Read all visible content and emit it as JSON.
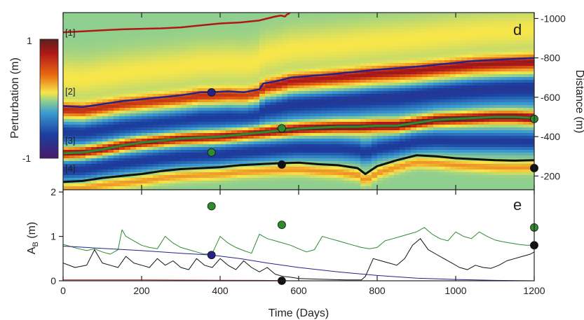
{
  "chart_data": [
    {
      "panel": "d",
      "type": "heatmap",
      "xlabel": "",
      "ylabel": "Distance (m)",
      "xlim": [
        0,
        1200
      ],
      "ylim": [
        -130,
        -1030
      ],
      "yticks": [
        -200,
        -400,
        -600,
        -800,
        -1000
      ],
      "colorbar": {
        "label": "Perturbation (m)",
        "max_label": "1",
        "min_label": "-1"
      },
      "band_labels": [
        "[1]",
        "[2]",
        "[3]",
        "[4]"
      ],
      "series": [
        {
          "color": "#b01818",
          "x": [
            0,
            50,
            100,
            150,
            200,
            250,
            300,
            350,
            400,
            450,
            500,
            520,
            540,
            555,
            565,
            570,
            575,
            580
          ],
          "y": [
            -930,
            -935,
            -940,
            -945,
            -948,
            -950,
            -955,
            -965,
            -975,
            -980,
            -990,
            -1000,
            -1010,
            -1015,
            -1010,
            -1020,
            -1025,
            -1035
          ]
        },
        {
          "color": "#23238a",
          "x": [
            0,
            50,
            100,
            150,
            200,
            250,
            300,
            350,
            380,
            420,
            460,
            500,
            510,
            540,
            560,
            580,
            640,
            700,
            750,
            800,
            900,
            950,
            1000,
            1050,
            1100,
            1150,
            1200
          ],
          "y": [
            -555,
            -550,
            -565,
            -580,
            -590,
            -600,
            -610,
            -625,
            -625,
            -630,
            -625,
            -640,
            -670,
            -680,
            -690,
            -700,
            -710,
            -720,
            -730,
            -740,
            -755,
            -765,
            -775,
            -785,
            -790,
            -795,
            -800
          ]
        },
        {
          "color": "#2e8b2e",
          "x": [
            0,
            50,
            100,
            150,
            200,
            250,
            300,
            350,
            400,
            450,
            500,
            550,
            600,
            650,
            700,
            750,
            800,
            850,
            900,
            950,
            1000,
            1050,
            1100,
            1150,
            1200
          ],
          "y": [
            -315,
            -320,
            -335,
            -355,
            -370,
            -380,
            -390,
            -395,
            -400,
            -410,
            -420,
            -430,
            -440,
            -445,
            -450,
            -450,
            -455,
            -455,
            -470,
            -485,
            -490,
            -495,
            -500,
            -500,
            -495
          ]
        },
        {
          "color": "#111111",
          "x": [
            0,
            50,
            100,
            150,
            200,
            250,
            300,
            350,
            400,
            450,
            500,
            550,
            600,
            650,
            700,
            750,
            770,
            800,
            850,
            900,
            950,
            1000,
            1050,
            1100,
            1150,
            1200
          ],
          "y": [
            -170,
            -175,
            -190,
            -200,
            -210,
            -225,
            -235,
            -240,
            -245,
            -255,
            -260,
            -265,
            -268,
            -260,
            -255,
            -240,
            -210,
            -250,
            -280,
            -305,
            -300,
            -290,
            -285,
            -280,
            -278,
            -280
          ]
        }
      ],
      "points": [
        {
          "x": 378,
          "y": -625,
          "color": "#23238a"
        },
        {
          "x": 378,
          "y": -320,
          "color": "#2e8b2e"
        },
        {
          "x": 557,
          "y": -442,
          "color": "#2e8b2e"
        },
        {
          "x": 557,
          "y": -258,
          "color": "#111111"
        },
        {
          "x": 1200,
          "y": -490,
          "color": "#2e8b2e"
        },
        {
          "x": 1200,
          "y": -240,
          "color": "#111111"
        }
      ]
    },
    {
      "panel": "e",
      "type": "line",
      "xlabel": "Time (Days)",
      "ylabel": "A",
      "ylabel_sub": "B",
      "ylabel_unit": " (m)",
      "xlim": [
        0,
        1200
      ],
      "ylim": [
        0,
        2.05
      ],
      "xticks": [
        0,
        200,
        400,
        600,
        800,
        1000,
        1200
      ],
      "yticks": [
        0,
        1,
        2
      ],
      "series": [
        {
          "color": "#2e8b2e",
          "x": [
            0,
            40,
            60,
            80,
            100,
            120,
            140,
            150,
            160,
            180,
            200,
            220,
            240,
            260,
            280,
            300,
            320,
            340,
            360,
            380,
            400,
            420,
            440,
            460,
            480,
            500,
            520,
            540,
            560,
            580,
            600,
            620,
            640,
            660,
            680,
            700,
            720,
            740,
            760,
            780,
            800,
            820,
            840,
            860,
            880,
            900,
            920,
            940,
            960,
            980,
            1000,
            1020,
            1040,
            1060,
            1080,
            1100,
            1120,
            1140,
            1160,
            1180,
            1200
          ],
          "y": [
            0.82,
            0.72,
            0.68,
            0.72,
            0.65,
            0.6,
            0.7,
            1.15,
            1.0,
            0.9,
            0.8,
            0.75,
            0.72,
            1.0,
            0.85,
            0.75,
            0.7,
            0.65,
            0.6,
            0.62,
            1.0,
            0.85,
            0.75,
            0.68,
            0.62,
            1.05,
            0.95,
            0.9,
            0.85,
            0.8,
            0.72,
            0.65,
            0.7,
            1.0,
            0.95,
            0.9,
            0.85,
            0.8,
            0.75,
            0.72,
            0.75,
            0.9,
            0.95,
            1.0,
            1.05,
            1.1,
            1.2,
            1.05,
            0.95,
            0.9,
            1.1,
            1.0,
            0.95,
            1.1,
            1.0,
            0.92,
            0.88,
            0.85,
            0.82,
            0.8,
            0.8
          ]
        },
        {
          "color": "#23238a",
          "x": [
            0,
            100,
            200,
            300,
            378,
            450,
            520,
            600,
            700,
            800,
            900,
            1000,
            1100,
            1200
          ],
          "y": [
            0.78,
            0.73,
            0.68,
            0.62,
            0.58,
            0.5,
            0.4,
            0.3,
            0.2,
            0.12,
            0.06,
            0.03,
            0.01,
            0.0
          ]
        },
        {
          "color": "#111111",
          "x": [
            0,
            30,
            60,
            80,
            100,
            120,
            140,
            160,
            180,
            200,
            220,
            240,
            260,
            280,
            300,
            320,
            340,
            360,
            380,
            400,
            420,
            440,
            460,
            480,
            500,
            520,
            540,
            560,
            580,
            600,
            640,
            680,
            720,
            760,
            770,
            790,
            810,
            830,
            850,
            870,
            890,
            910,
            930,
            950,
            970,
            990,
            1010,
            1030,
            1050,
            1070,
            1090,
            1110,
            1130,
            1150,
            1170,
            1190,
            1200
          ],
          "y": [
            0.4,
            0.3,
            0.35,
            0.7,
            0.4,
            0.35,
            0.3,
            0.55,
            0.4,
            0.35,
            0.3,
            0.5,
            0.35,
            0.45,
            0.3,
            0.25,
            0.5,
            0.35,
            0.3,
            0.5,
            0.35,
            0.25,
            0.45,
            0.3,
            0.2,
            0.3,
            0.15,
            0.1,
            0.08,
            0.05,
            0.04,
            0.03,
            0.02,
            0.02,
            0.1,
            0.5,
            0.45,
            0.4,
            0.35,
            0.5,
            0.8,
            0.95,
            0.7,
            0.6,
            0.5,
            0.4,
            0.3,
            0.25,
            0.35,
            0.3,
            0.28,
            0.35,
            0.45,
            0.5,
            0.55,
            0.6,
            0.65
          ]
        },
        {
          "color": "#b01818",
          "x": [
            0,
            100,
            200,
            300,
            400,
            500,
            560,
            580
          ],
          "y": [
            0.02,
            0.02,
            0.02,
            0.015,
            0.012,
            0.01,
            0.005,
            0.0
          ]
        }
      ],
      "points": [
        {
          "x": 378,
          "y": 1.68,
          "color": "#2e8b2e"
        },
        {
          "x": 378,
          "y": 0.58,
          "color": "#23238a"
        },
        {
          "x": 557,
          "y": 1.26,
          "color": "#2e8b2e"
        },
        {
          "x": 557,
          "y": 0.0,
          "color": "#111111"
        },
        {
          "x": 1200,
          "y": 1.2,
          "color": "#2e8b2e"
        },
        {
          "x": 1200,
          "y": 0.8,
          "color": "#111111"
        }
      ]
    }
  ]
}
